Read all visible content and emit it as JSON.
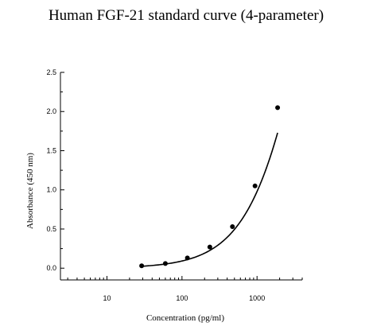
{
  "chart_data": {
    "type": "scatter",
    "title": "Human FGF-21 standard curve (4-parameter)",
    "xlabel": "Concentration (pg/ml)",
    "ylabel": "Absorbance (450 nm)",
    "xscale": "log",
    "xlim": [
      2.4,
      4000
    ],
    "ylim": [
      -0.15,
      2.5
    ],
    "x_ticks": [
      10,
      100,
      1000
    ],
    "y_ticks": [
      0.0,
      0.5,
      1.0,
      1.5,
      2.0,
      2.5
    ],
    "x_tick_labels": [
      "10",
      "100",
      "1000"
    ],
    "y_tick_labels": [
      "0.0",
      "0.5",
      "1.0",
      "1.5",
      "2.0",
      "2.5"
    ],
    "grid": false,
    "legend": false,
    "series": [
      {
        "x": [
          29,
          60,
          118,
          235,
          470,
          940,
          1880
        ],
        "y": [
          0.03,
          0.06,
          0.13,
          0.27,
          0.53,
          1.05,
          2.05
        ],
        "marker": "circle",
        "fit_line": "4-parameter logistic"
      }
    ]
  }
}
